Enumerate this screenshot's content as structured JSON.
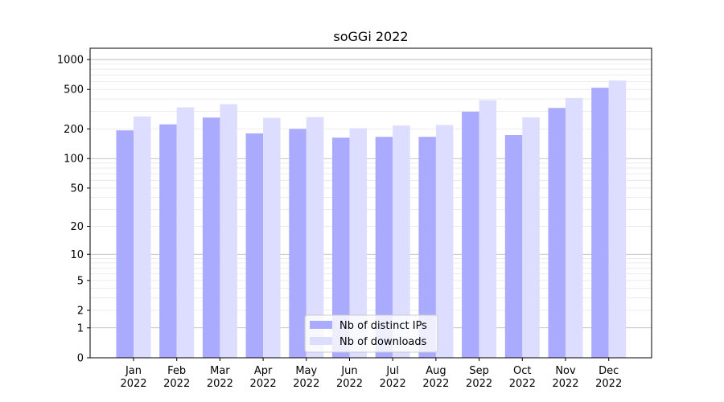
{
  "chart_data": {
    "type": "bar",
    "title": "soGGi 2022",
    "xlabel": "",
    "ylabel": "",
    "y_scale": "log(1+y)",
    "ylim": [
      0,
      1300
    ],
    "y_ticks": [
      0,
      1,
      2,
      5,
      10,
      20,
      50,
      100,
      200,
      500,
      1000
    ],
    "categories": [
      "Jan\n2022",
      "Feb\n2022",
      "Mar\n2022",
      "Apr\n2022",
      "May\n2022",
      "Jun\n2022",
      "Jul\n2022",
      "Aug\n2022",
      "Sep\n2022",
      "Oct\n2022",
      "Nov\n2022",
      "Dec\n2022"
    ],
    "series": [
      {
        "name": "Nb of distinct IPs",
        "color": "#aaaaff",
        "values": [
          193,
          222,
          260,
          180,
          200,
          163,
          166,
          166,
          298,
          173,
          325,
          520
        ]
      },
      {
        "name": "Nb of downloads",
        "color": "#ddddff",
        "values": [
          267,
          330,
          355,
          258,
          263,
          203,
          216,
          219,
          390,
          261,
          410,
          615
        ]
      }
    ],
    "grid": true,
    "legend_position": "bottom-center"
  }
}
